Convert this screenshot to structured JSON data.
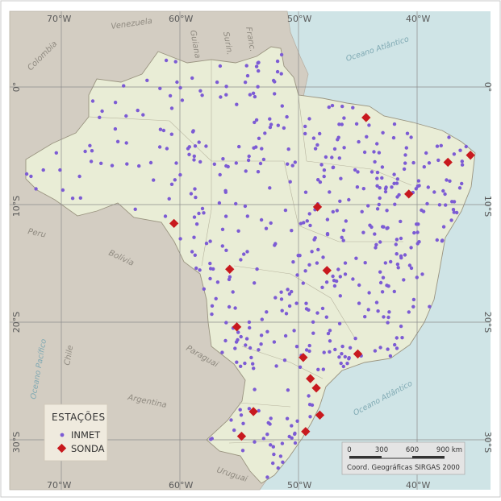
{
  "map": {
    "colors": {
      "ocean": "#cfe4e6",
      "neighbors": "#d3cdc2",
      "brazil": "#e9edd6",
      "grid": "#8c8c8c",
      "inmet": "#7c5bd4",
      "sonda": "#c8191e"
    },
    "countries": [
      "Venezuela",
      "Guiana",
      "Surin.",
      "Franc.",
      "Colombia",
      "Peru",
      "Bolívia",
      "Chile",
      "Paraguai",
      "Argentina",
      "Uruguai"
    ],
    "oceans": {
      "atlantic_north": "Oceano Atlântico",
      "atlantic_south": "Oceano Atlântico",
      "pacific": "Oceano Pacífico"
    },
    "coords": {
      "lon": [
        "70°W",
        "60°W",
        "50°W",
        "40°W"
      ],
      "lat": [
        "0°",
        "10°S",
        "20°S",
        "30°S"
      ]
    },
    "legend": {
      "title": "ESTAÇÕES",
      "inmet": "INMET",
      "sonda": "SONDA"
    },
    "scale": {
      "ticks": [
        "0",
        "300",
        "600",
        "900 km"
      ],
      "caption": "Coord. Geográficas SIRGAS 2000"
    },
    "sonda_stations": [
      [
        -44.3,
        -2.6
      ],
      [
        -35.5,
        -5.8
      ],
      [
        -37.4,
        -6.4
      ],
      [
        -40.7,
        -9.1
      ],
      [
        -48.4,
        -10.2
      ],
      [
        -60.5,
        -11.6
      ],
      [
        -55.8,
        -15.5
      ],
      [
        -47.6,
        -15.6
      ],
      [
        -55.2,
        -20.4
      ],
      [
        -45.0,
        -22.7
      ],
      [
        -49.6,
        -23.0
      ],
      [
        -49.0,
        -24.8
      ],
      [
        -48.5,
        -25.6
      ],
      [
        -53.8,
        -27.6
      ],
      [
        -48.2,
        -27.9
      ],
      [
        -49.4,
        -29.3
      ],
      [
        -54.8,
        -29.7
      ]
    ]
  }
}
